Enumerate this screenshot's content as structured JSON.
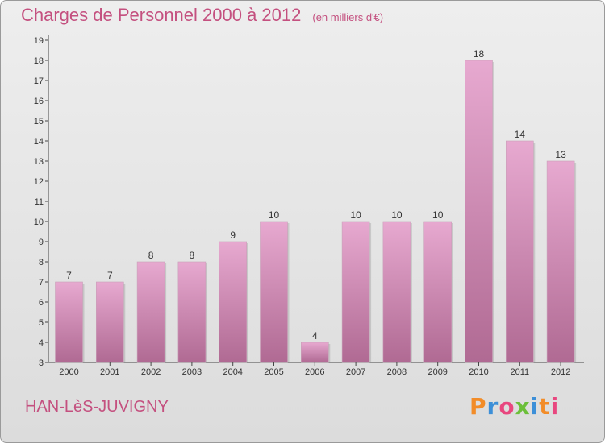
{
  "header": {
    "title": "Charges de Personnel 2000 à 2012",
    "subtitle": "(en milliers d'€)"
  },
  "commune": "HAN-LèS-JUVIGNY",
  "logo": {
    "text": "Proxiti",
    "colors": [
      "#f28c28",
      "#3c8fd8",
      "#e8477f",
      "#6cbf3a",
      "#3c8fd8",
      "#f28c28",
      "#e8477f"
    ]
  },
  "colors": {
    "title": "#c4507f",
    "bar_top": "#e7a9d0",
    "bar_bottom": "#b06a93",
    "axis": "#444444"
  },
  "chart_data": {
    "type": "bar",
    "categories": [
      "2000",
      "2001",
      "2002",
      "2003",
      "2004",
      "2005",
      "2006",
      "2007",
      "2008",
      "2009",
      "2010",
      "2011",
      "2012"
    ],
    "values": [
      7,
      7,
      8,
      8,
      9,
      10,
      4,
      10,
      10,
      10,
      18,
      14,
      13
    ],
    "ylim": [
      3,
      19
    ],
    "yticks": [
      3,
      4,
      5,
      6,
      7,
      8,
      9,
      10,
      11,
      12,
      13,
      14,
      15,
      16,
      17,
      18,
      19
    ],
    "grid": false,
    "data_labels": true
  }
}
